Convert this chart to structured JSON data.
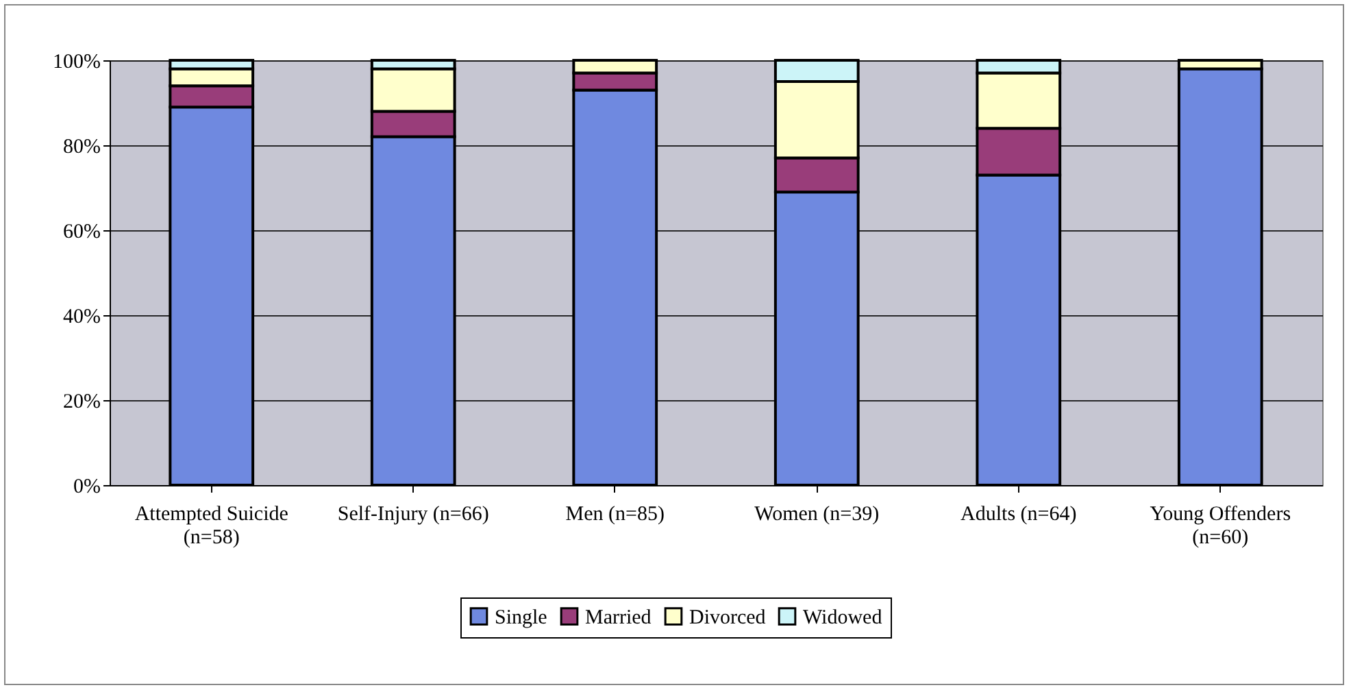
{
  "chart_data": {
    "type": "bar",
    "stacked": true,
    "categories": [
      "Attempted Suicide (n=58)",
      "Self-Injury (n=66)",
      "Men (n=85)",
      "Women (n=39)",
      "Adults (n=64)",
      "Young Offenders (n=60)"
    ],
    "series": [
      {
        "name": "Single",
        "color": "#6f89e0",
        "values": [
          89,
          82,
          93,
          69,
          73,
          98
        ]
      },
      {
        "name": "Married",
        "color": "#993d7a",
        "values": [
          5,
          6,
          4,
          8,
          11,
          0
        ]
      },
      {
        "name": "Divorced",
        "color": "#ffffcc",
        "values": [
          4,
          10,
          3,
          18,
          13,
          2
        ]
      },
      {
        "name": "Widowed",
        "color": "#ccf4f8",
        "values": [
          2,
          2,
          0,
          5,
          3,
          0
        ]
      }
    ],
    "ylim": [
      0,
      100
    ],
    "yticks": [
      {
        "value": 0,
        "label": "0%"
      },
      {
        "value": 20,
        "label": "20%"
      },
      {
        "value": 40,
        "label": "40%"
      },
      {
        "value": 60,
        "label": "60%"
      },
      {
        "value": 80,
        "label": "80%"
      },
      {
        "value": 100,
        "label": "100%"
      }
    ],
    "grid": "y",
    "legend": "bottom"
  }
}
